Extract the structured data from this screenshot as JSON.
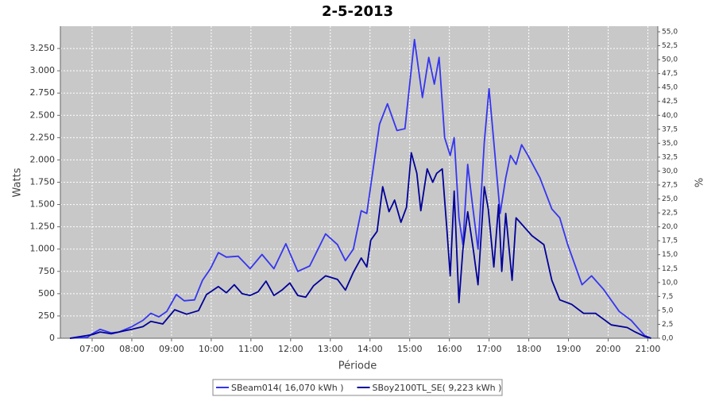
{
  "chart_data": {
    "type": "line",
    "title": "2-5-2013",
    "x_label": "Période",
    "y_label": "Watts",
    "y2_label": "%",
    "xlim": [
      6.2,
      21.25
    ],
    "ylim": [
      0,
      3500
    ],
    "y2lim": [
      0,
      56
    ],
    "grid": true,
    "legend": "bottom",
    "xticks": [
      {
        "value": 7,
        "label": "07:00"
      },
      {
        "value": 8,
        "label": "08:00"
      },
      {
        "value": 9,
        "label": "09:00"
      },
      {
        "value": 10,
        "label": "10:00"
      },
      {
        "value": 11,
        "label": "11:00"
      },
      {
        "value": 12,
        "label": "12:00"
      },
      {
        "value": 13,
        "label": "13:00"
      },
      {
        "value": 14,
        "label": "14:00"
      },
      {
        "value": 15,
        "label": "15:00"
      },
      {
        "value": 16,
        "label": "16:00"
      },
      {
        "value": 17,
        "label": "17:00"
      },
      {
        "value": 18,
        "label": "18:00"
      },
      {
        "value": 19,
        "label": "19:00"
      },
      {
        "value": 20,
        "label": "20:00"
      },
      {
        "value": 21,
        "label": "21:00"
      }
    ],
    "yticks": [
      0,
      250,
      500,
      750,
      {
        "value": 1000,
        "label": "1.000"
      },
      {
        "value": 1250,
        "label": "1.250"
      },
      {
        "value": 1500,
        "label": "1.500"
      },
      {
        "value": 1750,
        "label": "1.750"
      },
      {
        "value": 2000,
        "label": "2.000"
      },
      {
        "value": 2250,
        "label": "2.250"
      },
      {
        "value": 2500,
        "label": "2.500"
      },
      {
        "value": 2750,
        "label": "2.750"
      },
      {
        "value": 3000,
        "label": "3.000"
      },
      {
        "value": 3250,
        "label": "3.250"
      }
    ],
    "y2ticks": [
      {
        "value": 0,
        "label": "0,0"
      },
      {
        "value": 2.5,
        "label": "2,5"
      },
      {
        "value": 5,
        "label": "5,0"
      },
      {
        "value": 7.5,
        "label": "7,5"
      },
      {
        "value": 10,
        "label": "10,0"
      },
      {
        "value": 12.5,
        "label": "12,5"
      },
      {
        "value": 15,
        "label": "15,0"
      },
      {
        "value": 17.5,
        "label": "17,5"
      },
      {
        "value": 20,
        "label": "20,0"
      },
      {
        "value": 22.5,
        "label": "22,5"
      },
      {
        "value": 25,
        "label": "25,0"
      },
      {
        "value": 27.5,
        "label": "27,5"
      },
      {
        "value": 30,
        "label": "30,0"
      },
      {
        "value": 32.5,
        "label": "32,5"
      },
      {
        "value": 35,
        "label": "35,0"
      },
      {
        "value": 37.5,
        "label": "37,5"
      },
      {
        "value": 40,
        "label": "40,0"
      },
      {
        "value": 42.5,
        "label": "42,5"
      },
      {
        "value": 45,
        "label": "45,0"
      },
      {
        "value": 47.5,
        "label": "47,5"
      },
      {
        "value": 50,
        "label": "50,0"
      },
      {
        "value": 52.5,
        "label": "52,5"
      },
      {
        "value": 55,
        "label": "55,0"
      }
    ],
    "series": [
      {
        "name": "SBeam014( 16,070 kWh )",
        "color": "#3535f0",
        "x": [
          6.44,
          6.88,
          7,
          7.2,
          7.48,
          7.68,
          8,
          8.28,
          8.48,
          8.68,
          8.88,
          9.12,
          9.32,
          9.58,
          9.78,
          9.98,
          10.18,
          10.38,
          10.68,
          10.98,
          11.28,
          11.58,
          11.88,
          12.18,
          12.48,
          12.88,
          13.18,
          13.38,
          13.58,
          13.78,
          13.92,
          14.08,
          14.24,
          14.44,
          14.68,
          14.88,
          15.12,
          15.32,
          15.48,
          15.62,
          15.74,
          15.88,
          16.02,
          16.12,
          16.24,
          16.34,
          16.46,
          16.58,
          16.72,
          16.88,
          17,
          17.12,
          17.28,
          17.42,
          17.54,
          17.68,
          17.82,
          17.98,
          18.28,
          18.58,
          18.78,
          18.98,
          19.18,
          19.34,
          19.58,
          19.88,
          20.28,
          20.58,
          20.78,
          20.92,
          21.08
        ],
        "values": [
          0,
          10,
          50,
          100,
          60,
          70,
          130,
          200,
          280,
          240,
          300,
          490,
          420,
          430,
          650,
          780,
          960,
          910,
          920,
          780,
          940,
          780,
          1060,
          750,
          810,
          1170,
          1050,
          870,
          1000,
          1430,
          1400,
          1900,
          2400,
          2630,
          2330,
          2350,
          3350,
          2700,
          3150,
          2850,
          3150,
          2250,
          2050,
          2250,
          1350,
          1050,
          1950,
          1500,
          1000,
          2200,
          2800,
          2200,
          1400,
          1800,
          2050,
          1950,
          2170,
          2050,
          1800,
          1450,
          1350,
          1050,
          800,
          600,
          700,
          550,
          300,
          200,
          100,
          30,
          0
        ]
      },
      {
        "name": "SBoy2100TL_SE( 9,223 kWh )",
        "color": "#000099",
        "x": [
          6.44,
          7,
          7.2,
          7.48,
          7.78,
          8,
          8.28,
          8.48,
          8.78,
          9.08,
          9.38,
          9.68,
          9.88,
          10.18,
          10.38,
          10.58,
          10.78,
          10.98,
          11.18,
          11.38,
          11.58,
          11.78,
          11.98,
          12.18,
          12.38,
          12.58,
          12.88,
          13.18,
          13.38,
          13.58,
          13.78,
          13.92,
          14.02,
          14.18,
          14.32,
          14.48,
          14.62,
          14.78,
          14.92,
          15.04,
          15.18,
          15.28,
          15.44,
          15.58,
          15.68,
          15.82,
          15.94,
          16.02,
          16.12,
          16.24,
          16.34,
          16.46,
          16.6,
          16.72,
          16.88,
          16.98,
          17.12,
          17.24,
          17.32,
          17.42,
          17.58,
          17.68,
          17.88,
          18.08,
          18.38,
          18.58,
          18.78,
          19.08,
          19.38,
          19.68,
          20.08,
          20.48,
          20.68,
          20.92,
          21.08
        ],
        "values": [
          0,
          40,
          70,
          50,
          80,
          100,
          130,
          190,
          160,
          320,
          270,
          310,
          490,
          580,
          510,
          600,
          500,
          480,
          520,
          640,
          480,
          540,
          620,
          480,
          460,
          590,
          700,
          660,
          540,
          740,
          900,
          800,
          1100,
          1200,
          1700,
          1420,
          1550,
          1300,
          1470,
          2080,
          1850,
          1430,
          1900,
          1750,
          1850,
          1900,
          1200,
          700,
          1650,
          400,
          1000,
          1420,
          1000,
          600,
          1700,
          1450,
          800,
          1500,
          750,
          1400,
          650,
          1350,
          1250,
          1150,
          1050,
          650,
          430,
          380,
          280,
          280,
          150,
          120,
          70,
          20,
          0
        ]
      }
    ]
  }
}
